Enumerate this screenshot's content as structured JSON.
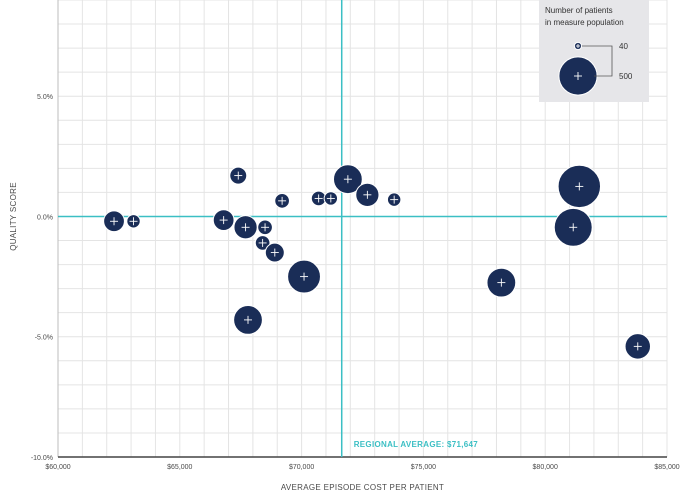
{
  "chart_data": {
    "type": "scatter",
    "xlabel": "AVERAGE EPISODE COST PER PATIENT",
    "ylabel": "QUALITY SCORE",
    "xlim": [
      60000,
      85000
    ],
    "ylim": [
      -10.0,
      9.0
    ],
    "x_ticks": [
      60000,
      65000,
      70000,
      75000,
      80000,
      85000
    ],
    "x_tick_labels": [
      "$60,000",
      "$65,000",
      "$70,000",
      "$75,000",
      "$80,000",
      "$85,000"
    ],
    "y_ticks": [
      5.0,
      0.0,
      -5.0,
      -10.0
    ],
    "y_tick_labels": [
      "5.0%",
      "0.0%",
      "-5.0%",
      "-10.0%"
    ],
    "grid": true,
    "reference_lines": {
      "vertical_x": 71647,
      "horizontal_y": 0.0,
      "label": "REGIONAL AVERAGE: $71,647"
    },
    "legend": {
      "title": "Number of patients in measure population",
      "title_lines": [
        "Number of patients",
        "in measure population"
      ],
      "sizes": [
        {
          "label": "40",
          "value": 40
        },
        {
          "label": "500",
          "value": 500
        }
      ],
      "placement": "top-right"
    },
    "colors": {
      "bubble": "#1a2d57",
      "reference": "#3bbfc4",
      "grid": "#e4e4e4"
    },
    "points": [
      {
        "x": 62300,
        "y": -0.2,
        "size": 120
      },
      {
        "x": 63100,
        "y": -0.2,
        "size": 50
      },
      {
        "x": 66800,
        "y": -0.15,
        "size": 120
      },
      {
        "x": 67400,
        "y": 1.7,
        "size": 80
      },
      {
        "x": 67700,
        "y": -0.45,
        "size": 150
      },
      {
        "x": 67800,
        "y": -4.3,
        "size": 230
      },
      {
        "x": 68400,
        "y": -1.1,
        "size": 60
      },
      {
        "x": 68500,
        "y": -0.45,
        "size": 60
      },
      {
        "x": 68900,
        "y": -1.5,
        "size": 100
      },
      {
        "x": 69200,
        "y": 0.65,
        "size": 60
      },
      {
        "x": 70100,
        "y": -2.5,
        "size": 300
      },
      {
        "x": 70700,
        "y": 0.75,
        "size": 60
      },
      {
        "x": 71200,
        "y": 0.75,
        "size": 50
      },
      {
        "x": 71900,
        "y": 1.55,
        "size": 230
      },
      {
        "x": 72700,
        "y": 0.9,
        "size": 150
      },
      {
        "x": 73800,
        "y": 0.7,
        "size": 50
      },
      {
        "x": 78200,
        "y": -2.75,
        "size": 230
      },
      {
        "x": 81100,
        "y": -0.1,
        "size": 120
      },
      {
        "x": 81150,
        "y": -0.45,
        "size": 400
      },
      {
        "x": 81400,
        "y": 1.25,
        "size": 500
      },
      {
        "x": 83800,
        "y": -5.4,
        "size": 180
      }
    ]
  }
}
